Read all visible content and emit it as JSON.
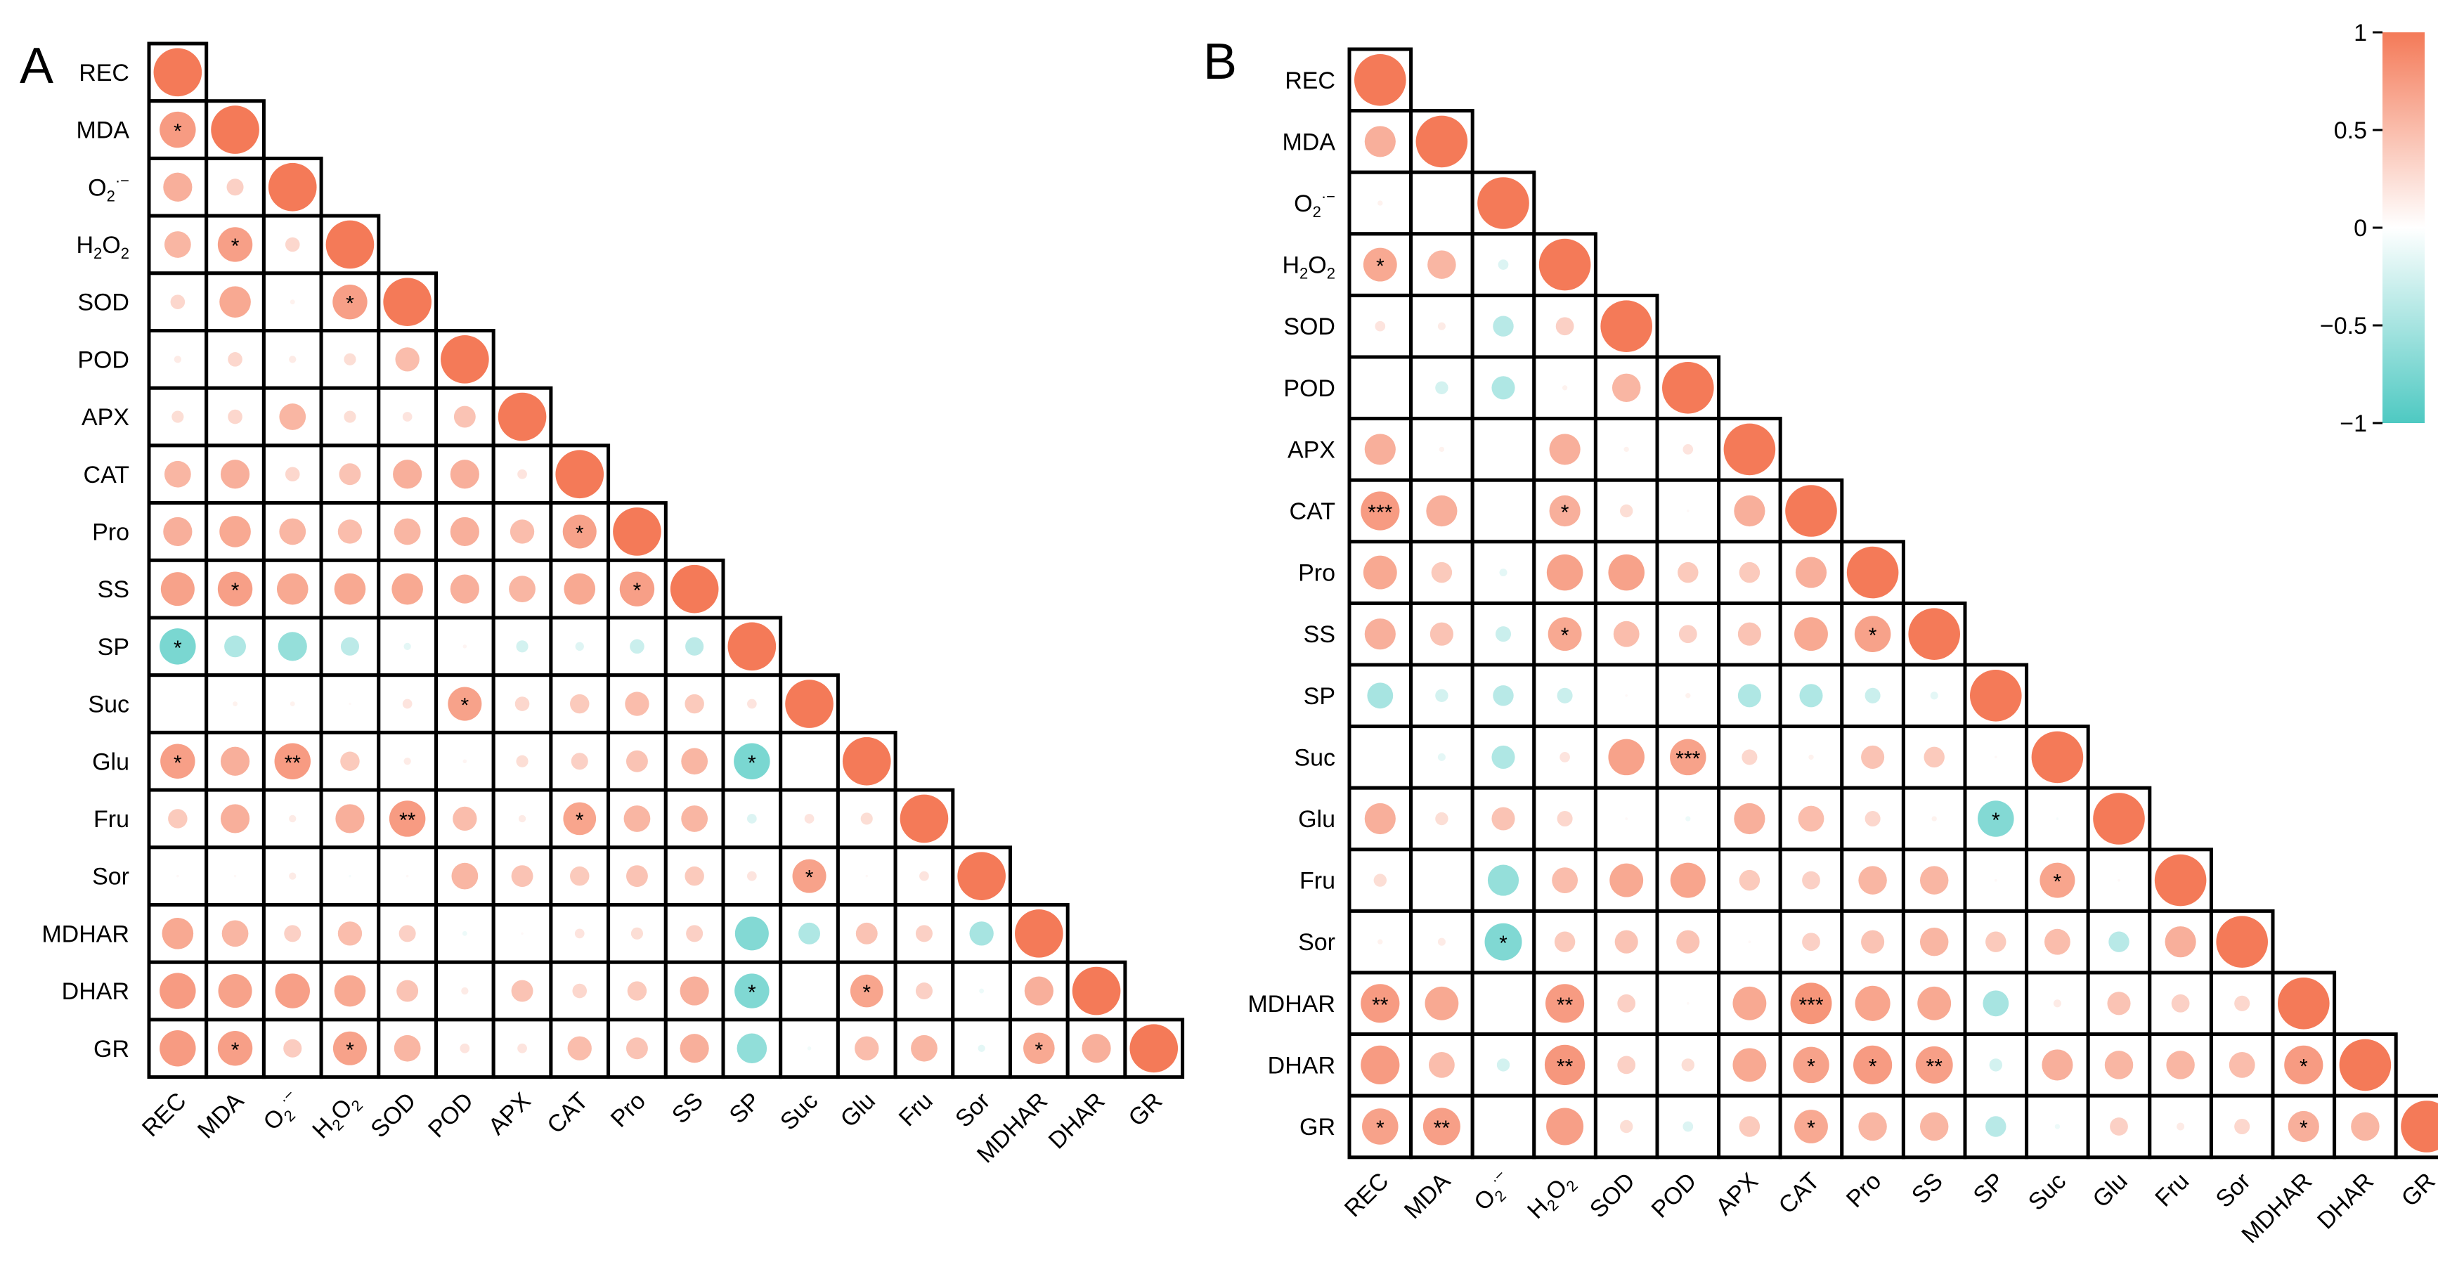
{
  "figure": {
    "colors": {
      "positive": "#F47A58",
      "neutral": "#FFFFFF",
      "negative": "#4EC9C2",
      "border": "#000000"
    }
  },
  "chart_data": [
    {
      "type": "heatmap",
      "panel_label": "A",
      "shape": "lower-triangle circle correlation matrix",
      "variables": [
        "REC",
        "MDA",
        "O2·−",
        "H2O2",
        "SOD",
        "POD",
        "APX",
        "CAT",
        "Pro",
        "SS",
        "SP",
        "Suc",
        "Glu",
        "Fru",
        "Sor",
        "MDHAR",
        "DHAR",
        "GR"
      ],
      "labels": [
        {
          "text": "REC"
        },
        {
          "text": "MDA"
        },
        {
          "text": "O",
          "sub": "2",
          "sup": "·−"
        },
        {
          "text": "H",
          "sub": "2",
          "text2": "O",
          "sub2": "2"
        },
        {
          "text": "SOD"
        },
        {
          "text": "POD"
        },
        {
          "text": "APX"
        },
        {
          "text": "CAT"
        },
        {
          "text": "Pro"
        },
        {
          "text": "SS"
        },
        {
          "text": "SP"
        },
        {
          "text": "Suc"
        },
        {
          "text": "Glu"
        },
        {
          "text": "Fru"
        },
        {
          "text": "Sor"
        },
        {
          "text": "MDHAR"
        },
        {
          "text": "DHAR"
        },
        {
          "text": "GR"
        }
      ],
      "values": [
        [
          1
        ],
        [
          0.75,
          1
        ],
        [
          0.6,
          0.35,
          1
        ],
        [
          0.55,
          0.72,
          0.3,
          1
        ],
        [
          0.3,
          0.65,
          0.1,
          0.72,
          1
        ],
        [
          0.15,
          0.3,
          0.15,
          0.25,
          0.5,
          1
        ],
        [
          0.25,
          0.3,
          0.55,
          0.25,
          0.2,
          0.45,
          1
        ],
        [
          0.55,
          0.6,
          0.3,
          0.45,
          0.6,
          0.6,
          0.2,
          1
        ],
        [
          0.6,
          0.65,
          0.55,
          0.5,
          0.55,
          0.6,
          0.5,
          0.7,
          1
        ],
        [
          0.7,
          0.72,
          0.65,
          0.65,
          0.65,
          0.6,
          0.55,
          0.65,
          0.72,
          1
        ],
        [
          -0.75,
          -0.45,
          -0.6,
          -0.38,
          -0.15,
          0.08,
          -0.25,
          -0.18,
          -0.3,
          -0.38,
          1
        ],
        [
          0.0,
          0.1,
          0.1,
          0.05,
          0.2,
          0.7,
          0.3,
          0.4,
          0.5,
          0.4,
          0.2,
          1
        ],
        [
          0.72,
          0.6,
          0.75,
          0.4,
          0.15,
          0.08,
          0.25,
          0.35,
          0.45,
          0.55,
          -0.75,
          0.0,
          1
        ],
        [
          0.4,
          0.6,
          0.15,
          0.6,
          0.75,
          0.5,
          0.15,
          0.68,
          0.55,
          0.55,
          -0.2,
          0.2,
          0.25,
          1
        ],
        [
          0.05,
          0.05,
          0.15,
          -0.05,
          0.05,
          0.55,
          0.45,
          0.4,
          0.45,
          0.4,
          0.2,
          0.7,
          0.05,
          0.2,
          1
        ],
        [
          0.65,
          0.55,
          0.35,
          0.5,
          0.35,
          -0.1,
          0.05,
          0.2,
          0.25,
          0.35,
          -0.7,
          -0.45,
          0.45,
          0.35,
          -0.5,
          1
        ],
        [
          0.75,
          0.7,
          0.72,
          0.65,
          0.45,
          0.15,
          0.45,
          0.3,
          0.4,
          0.6,
          -0.72,
          0.0,
          0.68,
          0.35,
          -0.1,
          0.6,
          1
        ],
        [
          0.75,
          0.72,
          0.38,
          0.7,
          0.55,
          0.2,
          0.2,
          0.5,
          0.45,
          0.6,
          -0.62,
          -0.08,
          0.5,
          0.55,
          -0.15,
          0.65,
          0.6,
          1
        ]
      ],
      "significance": [
        [
          ""
        ],
        [
          "*",
          ""
        ],
        [
          "",
          "",
          ""
        ],
        [
          "",
          "*",
          "",
          ""
        ],
        [
          "",
          "",
          "",
          "*",
          ""
        ],
        [
          "",
          "",
          "",
          "",
          "",
          ""
        ],
        [
          "",
          "",
          "",
          "",
          "",
          "",
          ""
        ],
        [
          "",
          "",
          "",
          "",
          "",
          "",
          "",
          ""
        ],
        [
          "",
          "",
          "",
          "",
          "",
          "",
          "",
          "*",
          ""
        ],
        [
          "",
          "*",
          "",
          "",
          "",
          "",
          "",
          "",
          "*",
          ""
        ],
        [
          "*",
          "",
          "",
          "",
          "",
          "",
          "",
          "",
          "",
          "",
          ""
        ],
        [
          "",
          "",
          "",
          "",
          "",
          "*",
          "",
          "",
          "",
          "",
          "",
          ""
        ],
        [
          "*",
          "",
          "**",
          "",
          "",
          "",
          "",
          "",
          "",
          "",
          "*",
          "",
          ""
        ],
        [
          "",
          "",
          "",
          "",
          "**",
          "",
          "",
          "*",
          "",
          "",
          "",
          "",
          "",
          ""
        ],
        [
          "",
          "",
          "",
          "",
          "",
          "",
          "",
          "",
          "",
          "",
          "",
          "*",
          "",
          "",
          ""
        ],
        [
          "",
          "",
          "",
          "",
          "",
          "",
          "",
          "",
          "",
          "",
          "",
          "",
          "",
          "",
          "",
          ""
        ],
        [
          "",
          "",
          "",
          "",
          "",
          "",
          "",
          "",
          "",
          "",
          "*",
          "",
          "*",
          "",
          "",
          "",
          ""
        ],
        [
          "",
          "*",
          "",
          "*",
          "",
          "",
          "",
          "",
          "",
          "",
          "",
          "",
          "",
          "",
          "",
          "*",
          "",
          ""
        ]
      ]
    },
    {
      "type": "heatmap",
      "panel_label": "B",
      "shape": "lower-triangle circle correlation matrix",
      "variables": [
        "REC",
        "MDA",
        "O2·−",
        "H2O2",
        "SOD",
        "POD",
        "APX",
        "CAT",
        "Pro",
        "SS",
        "SP",
        "Suc",
        "Glu",
        "Fru",
        "Sor",
        "MDHAR",
        "DHAR",
        "GR"
      ],
      "labels": [
        {
          "text": "REC"
        },
        {
          "text": "MDA"
        },
        {
          "text": "O",
          "sub": "2",
          "sup": "·−"
        },
        {
          "text": "H",
          "sub": "2",
          "text2": "O",
          "sub2": "2"
        },
        {
          "text": "SOD"
        },
        {
          "text": "POD"
        },
        {
          "text": "APX"
        },
        {
          "text": "CAT"
        },
        {
          "text": "Pro"
        },
        {
          "text": "SS"
        },
        {
          "text": "SP"
        },
        {
          "text": "Suc"
        },
        {
          "text": "Glu"
        },
        {
          "text": "Fru"
        },
        {
          "text": "Sor"
        },
        {
          "text": "MDHAR"
        },
        {
          "text": "DHAR"
        },
        {
          "text": "GR"
        }
      ],
      "values": [
        [
          1
        ],
        [
          0.6,
          1
        ],
        [
          0.1,
          0.0,
          1
        ],
        [
          0.65,
          0.55,
          -0.2,
          1
        ],
        [
          0.2,
          0.15,
          -0.4,
          0.35,
          1
        ],
        [
          0.0,
          -0.25,
          -0.45,
          0.1,
          0.55,
          1
        ],
        [
          0.6,
          0.1,
          0.0,
          0.6,
          0.1,
          0.2,
          1
        ],
        [
          0.75,
          0.6,
          0.0,
          0.6,
          0.25,
          0.05,
          0.6,
          1
        ],
        [
          0.65,
          0.4,
          -0.15,
          0.7,
          0.7,
          0.4,
          0.4,
          0.6,
          1
        ],
        [
          0.6,
          0.45,
          -0.3,
          0.65,
          0.5,
          0.35,
          0.45,
          0.65,
          0.7,
          1
        ],
        [
          -0.5,
          -0.25,
          -0.4,
          -0.3,
          0.05,
          0.1,
          -0.45,
          -0.45,
          -0.3,
          -0.15,
          1
        ],
        [
          0.0,
          -0.15,
          -0.45,
          0.2,
          0.7,
          0.7,
          0.3,
          0.1,
          0.45,
          0.4,
          0.05,
          1
        ],
        [
          0.6,
          0.25,
          0.45,
          0.3,
          0.05,
          -0.1,
          0.6,
          0.5,
          0.3,
          0.1,
          -0.7,
          -0.05,
          1
        ],
        [
          0.25,
          0.0,
          -0.6,
          0.5,
          0.65,
          0.68,
          0.4,
          0.35,
          0.55,
          0.55,
          0.05,
          0.68,
          0.05,
          1
        ],
        [
          0.1,
          0.15,
          -0.72,
          0.4,
          0.45,
          0.45,
          0.05,
          0.35,
          0.45,
          0.55,
          0.4,
          0.5,
          -0.4,
          0.6,
          1
        ],
        [
          0.75,
          0.65,
          0.0,
          0.75,
          0.35,
          0.05,
          0.65,
          0.8,
          0.68,
          0.65,
          -0.5,
          0.15,
          0.45,
          0.35,
          0.3,
          1
        ],
        [
          0.75,
          0.5,
          -0.25,
          0.78,
          0.35,
          0.25,
          0.65,
          0.7,
          0.75,
          0.72,
          -0.25,
          0.6,
          0.55,
          0.55,
          0.5,
          0.75,
          1
        ],
        [
          0.7,
          0.72,
          0.0,
          0.72,
          0.25,
          -0.2,
          0.4,
          0.65,
          0.55,
          0.55,
          -0.4,
          -0.1,
          0.35,
          0.15,
          0.3,
          0.6,
          0.55,
          1
        ]
      ],
      "significance": [
        [
          ""
        ],
        [
          "",
          ""
        ],
        [
          "",
          "",
          ""
        ],
        [
          "*",
          "",
          "",
          ""
        ],
        [
          "",
          "",
          "",
          "",
          ""
        ],
        [
          "",
          "",
          "",
          "",
          "",
          ""
        ],
        [
          "",
          "",
          "",
          "",
          "",
          "",
          ""
        ],
        [
          "***",
          "",
          "",
          "*",
          "",
          "",
          "",
          ""
        ],
        [
          "",
          "",
          "",
          "",
          "",
          "",
          "",
          "",
          ""
        ],
        [
          "",
          "",
          "",
          "*",
          "",
          "",
          "",
          "",
          "*",
          ""
        ],
        [
          "",
          "",
          "",
          "",
          "",
          "",
          "",
          "",
          "",
          "",
          ""
        ],
        [
          "",
          "",
          "",
          "",
          "",
          "***",
          "",
          "",
          "",
          "",
          "",
          ""
        ],
        [
          "",
          "",
          "",
          "",
          "",
          "",
          "",
          "",
          "",
          "",
          "*",
          "",
          ""
        ],
        [
          "",
          "",
          "",
          "",
          "",
          "",
          "",
          "",
          "",
          "",
          "",
          "*",
          "",
          ""
        ],
        [
          "",
          "",
          "*",
          "",
          "",
          "",
          "",
          "",
          "",
          "",
          "",
          "",
          "",
          "",
          ""
        ],
        [
          "**",
          "",
          "",
          "**",
          "",
          "",
          "",
          "***",
          "",
          "",
          "",
          "",
          "",
          "",
          "",
          ""
        ],
        [
          "",
          "",
          "",
          "**",
          "",
          "",
          "",
          "*",
          "*",
          "**",
          "",
          "",
          "",
          "",
          "",
          "*",
          ""
        ],
        [
          "*",
          "**",
          "",
          "",
          "",
          "",
          "",
          "*",
          "",
          "",
          "",
          "",
          "",
          "",
          "",
          "*",
          "",
          ""
        ]
      ]
    }
  ],
  "colorbar": {
    "min": -1,
    "max": 1,
    "tick_labels": [
      "1",
      "0.5",
      "0",
      "−0.5",
      "−1"
    ]
  }
}
